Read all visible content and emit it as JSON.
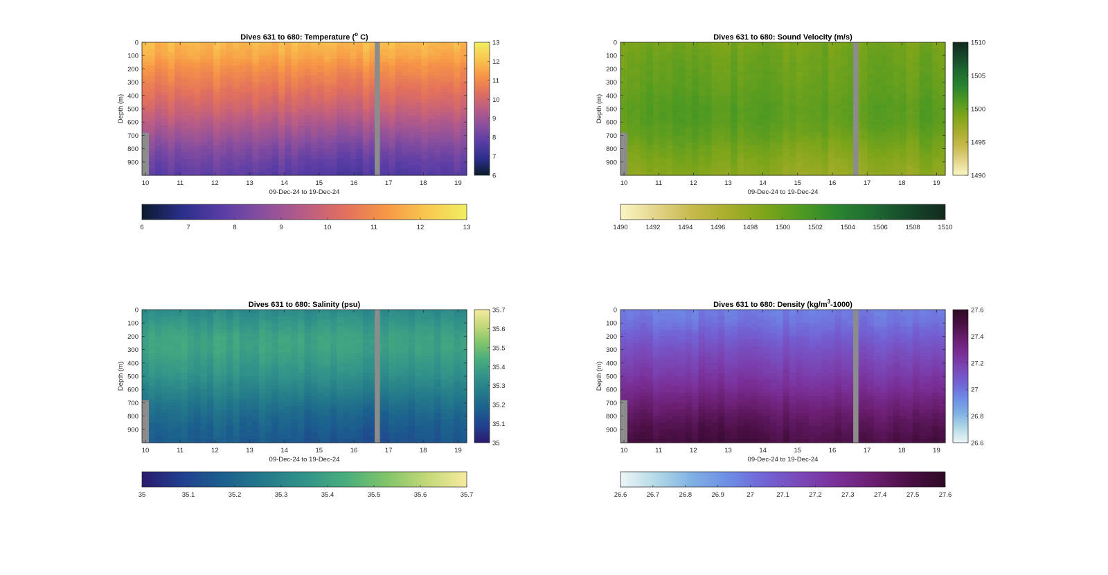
{
  "chart_data": [
    {
      "type": "heatmap",
      "title_prefix": "Dives 631 to 680: Temperature (",
      "title_sup": "o",
      "title_suffix": " C)",
      "xlabel": "09-Dec-24 to 19-Dec-24",
      "ylabel": "Depth (m)",
      "xticks": [
        10,
        11,
        12,
        13,
        14,
        15,
        16,
        17,
        18,
        19
      ],
      "yticks": [
        0,
        100,
        200,
        300,
        400,
        500,
        600,
        700,
        800,
        900
      ],
      "xlim": [
        9.9,
        19.25
      ],
      "ylim": [
        0,
        1000
      ],
      "gap": [
        16.6,
        16.75
      ],
      "early_cutoff": {
        "x_end": 10.1,
        "depth": 680
      },
      "clim": [
        6,
        13
      ],
      "cbar_right_ticks": [
        6,
        7,
        8,
        9,
        10,
        11,
        12,
        13
      ],
      "cbar_bottom_ticks": [
        6,
        7,
        8,
        9,
        10,
        11,
        12,
        13
      ],
      "colormap": [
        "#0b1a2c",
        "#2b2f8c",
        "#5a3da6",
        "#8a4f9e",
        "#b95c86",
        "#e2705d",
        "#f79646",
        "#f9c74f",
        "#f0ee62"
      ],
      "profile": {
        "depth": [
          0,
          100,
          200,
          300,
          400,
          500,
          600,
          700,
          800,
          900,
          1000
        ],
        "value": [
          11.9,
          11.6,
          11.1,
          10.7,
          10.3,
          9.9,
          9.4,
          8.9,
          8.4,
          8.0,
          7.7
        ]
      }
    },
    {
      "type": "heatmap",
      "title_prefix": "Dives 631 to 680: Sound Velocity (m/s)",
      "title_sup": "",
      "title_suffix": "",
      "xlabel": "09-Dec-24 to 19-Dec-24",
      "ylabel": "Depth (m)",
      "xticks": [
        10,
        11,
        12,
        13,
        14,
        15,
        16,
        17,
        18,
        19
      ],
      "yticks": [
        0,
        100,
        200,
        300,
        400,
        500,
        600,
        700,
        800,
        900
      ],
      "xlim": [
        9.9,
        19.25
      ],
      "ylim": [
        0,
        1000
      ],
      "gap": [
        16.6,
        16.75
      ],
      "early_cutoff": {
        "x_end": 10.1,
        "depth": 680
      },
      "clim": [
        1490,
        1510
      ],
      "cbar_right_ticks": [
        1490,
        1495,
        1500,
        1505,
        1510
      ],
      "cbar_bottom_ticks": [
        1490,
        1492,
        1494,
        1496,
        1498,
        1500,
        1502,
        1504,
        1506,
        1508,
        1510
      ],
      "colormap": [
        "#fbf6c4",
        "#e3d48a",
        "#c6b94b",
        "#a7ad2a",
        "#7ea51a",
        "#4f9a22",
        "#2a852f",
        "#1f6a33",
        "#16482a",
        "#132a1e"
      ],
      "profile": {
        "depth": [
          0,
          100,
          200,
          300,
          400,
          500,
          600,
          700,
          800,
          900,
          1000
        ],
        "value": [
          1499.2,
          1499.6,
          1499.8,
          1500.0,
          1500.3,
          1500.6,
          1500.5,
          1499.9,
          1499.1,
          1498.4,
          1497.8
        ]
      }
    },
    {
      "type": "heatmap",
      "title_prefix": "Dives 631 to 680: Salinity (psu)",
      "title_sup": "",
      "title_suffix": "",
      "xlabel": "09-Dec-24 to 19-Dec-24",
      "ylabel": "Depth (m)",
      "xticks": [
        10,
        11,
        12,
        13,
        14,
        15,
        16,
        17,
        18,
        19
      ],
      "yticks": [
        0,
        100,
        200,
        300,
        400,
        500,
        600,
        700,
        800,
        900
      ],
      "xlim": [
        9.9,
        19.25
      ],
      "ylim": [
        0,
        1000
      ],
      "gap": [
        16.6,
        16.75
      ],
      "early_cutoff": {
        "x_end": 10.1,
        "depth": 680
      },
      "clim": [
        35,
        35.7
      ],
      "cbar_right_ticks": [
        35,
        35.1,
        35.2,
        35.3,
        35.4,
        35.5,
        35.6,
        35.7
      ],
      "cbar_bottom_ticks": [
        35,
        35.1,
        35.2,
        35.3,
        35.4,
        35.5,
        35.6,
        35.7
      ],
      "colormap": [
        "#2a1a6e",
        "#22408f",
        "#1b5f8e",
        "#247a8a",
        "#31938a",
        "#48ad7e",
        "#80c46a",
        "#c2d878",
        "#f6ea9e"
      ],
      "profile": {
        "depth": [
          0,
          100,
          200,
          300,
          400,
          500,
          600,
          700,
          800,
          900,
          1000
        ],
        "value": [
          35.32,
          35.36,
          35.4,
          35.4,
          35.37,
          35.34,
          35.29,
          35.24,
          35.2,
          35.17,
          35.15
        ]
      }
    },
    {
      "type": "heatmap",
      "title_prefix": "Dives 631 to 680: Density (kg/m",
      "title_sup": "3",
      "title_suffix": "-1000)",
      "xlabel": "09-Dec-24 to 19-Dec-24",
      "ylabel": "Depth (m)",
      "xticks": [
        10,
        11,
        12,
        13,
        14,
        15,
        16,
        17,
        18,
        19
      ],
      "yticks": [
        0,
        100,
        200,
        300,
        400,
        500,
        600,
        700,
        800,
        900
      ],
      "xlim": [
        9.9,
        19.25
      ],
      "ylim": [
        0,
        1000
      ],
      "gap": [
        16.6,
        16.75
      ],
      "early_cutoff": {
        "x_end": 10.1,
        "depth": 680
      },
      "clim": [
        26.6,
        27.6
      ],
      "cbar_right_ticks": [
        26.6,
        26.8,
        27,
        27.2,
        27.4,
        27.6
      ],
      "cbar_bottom_ticks": [
        26.6,
        26.7,
        26.8,
        26.9,
        27,
        27.1,
        27.2,
        27.3,
        27.4,
        27.5,
        27.6
      ],
      "colormap": [
        "#eef6f7",
        "#b3d9e6",
        "#7fb0e4",
        "#6e8de6",
        "#7263d6",
        "#7a48b8",
        "#7a2f98",
        "#6a1e70",
        "#4a0f44",
        "#2e0a26"
      ],
      "profile": {
        "depth": [
          0,
          100,
          200,
          300,
          400,
          500,
          600,
          700,
          800,
          900,
          1000
        ],
        "value": [
          26.97,
          27.0,
          27.06,
          27.12,
          27.17,
          27.22,
          27.28,
          27.35,
          27.41,
          27.46,
          27.5
        ]
      }
    }
  ]
}
